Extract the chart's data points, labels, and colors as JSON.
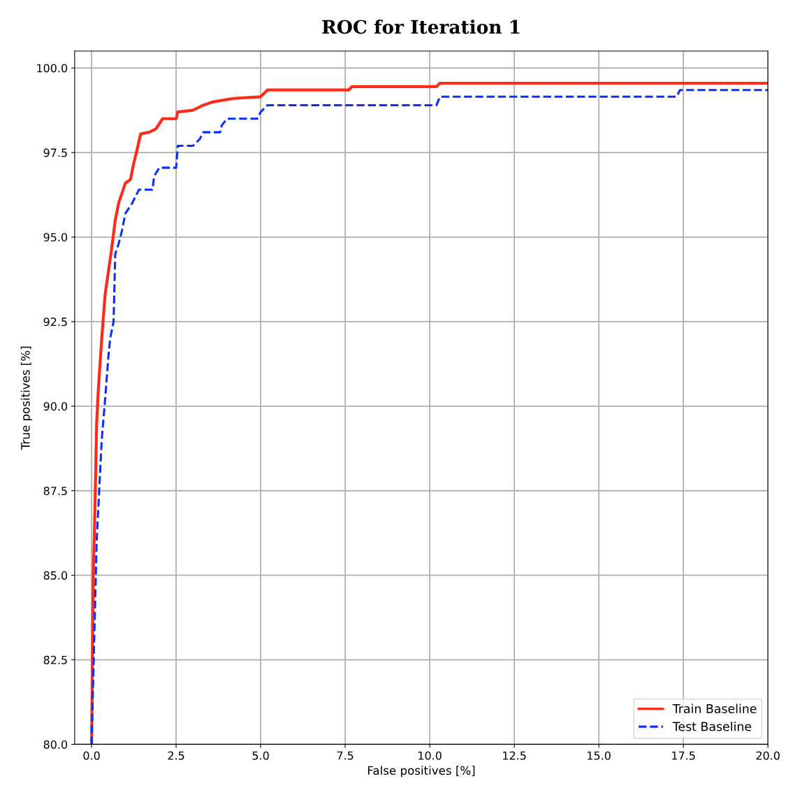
{
  "chart_data": {
    "type": "line",
    "title": "ROC for Iteration 1",
    "xlabel": "False positives [%]",
    "ylabel": "True positives [%]",
    "xlim": [
      -0.5,
      20
    ],
    "ylim": [
      80,
      100.5
    ],
    "xticks": [
      {
        "value": 0,
        "label": "0.0"
      },
      {
        "value": 2.5,
        "label": "2.5"
      },
      {
        "value": 5,
        "label": "5.0"
      },
      {
        "value": 7.5,
        "label": "7.5"
      },
      {
        "value": 10,
        "label": "10.0"
      },
      {
        "value": 12.5,
        "label": "12.5"
      },
      {
        "value": 15,
        "label": "15.0"
      },
      {
        "value": 17.5,
        "label": "17.5"
      },
      {
        "value": 20,
        "label": "20.0"
      }
    ],
    "yticks": [
      {
        "value": 80,
        "label": "80.0"
      },
      {
        "value": 82.5,
        "label": "82.5"
      },
      {
        "value": 85,
        "label": "85.0"
      },
      {
        "value": 87.5,
        "label": "87.5"
      },
      {
        "value": 90,
        "label": "90.0"
      },
      {
        "value": 92.5,
        "label": "92.5"
      },
      {
        "value": 95,
        "label": "95.0"
      },
      {
        "value": 97.5,
        "label": "97.5"
      },
      {
        "value": 100,
        "label": "100.0"
      }
    ],
    "grid": true,
    "legend": "bottom right",
    "marker": "none",
    "series": [
      {
        "name": "Train Baseline",
        "color": "#ff2a1a",
        "line_style": "solid",
        "x": [
          0,
          0.05,
          0.1,
          0.15,
          0.2,
          0.3,
          0.4,
          0.5,
          0.6,
          0.7,
          0.8,
          0.9,
          1.0,
          1.15,
          1.25,
          1.35,
          1.45,
          1.7,
          1.9,
          2.1,
          2.5,
          2.55,
          3.0,
          3.3,
          3.6,
          4.2,
          5.0,
          5.1,
          5.2,
          7.6,
          7.7,
          10.2,
          10.3,
          20
        ],
        "values": [
          80,
          85,
          87,
          89.5,
          90.5,
          92,
          93.3,
          94,
          94.7,
          95.5,
          96,
          96.3,
          96.6,
          96.7,
          97.2,
          97.6,
          98.05,
          98.1,
          98.2,
          98.5,
          98.5,
          98.7,
          98.75,
          98.9,
          99.0,
          99.1,
          99.15,
          99.25,
          99.35,
          99.35,
          99.45,
          99.45,
          99.55,
          99.55
        ]
      },
      {
        "name": "Test Baseline",
        "color": "#0a2eff",
        "line_style": "dashed",
        "x": [
          0,
          0.1,
          0.15,
          0.25,
          0.3,
          0.4,
          0.5,
          0.55,
          0.65,
          0.7,
          0.8,
          0.9,
          1.0,
          1.2,
          1.4,
          1.8,
          1.85,
          2.0,
          2.5,
          2.55,
          3.0,
          3.2,
          3.3,
          3.8,
          3.85,
          4.0,
          4.9,
          5.0,
          5.2,
          10.2,
          10.3,
          17.3,
          17.4,
          20
        ],
        "values": [
          80,
          84,
          86,
          88,
          89,
          90.2,
          91.5,
          92,
          92.5,
          94.5,
          94.8,
          95.2,
          95.7,
          96,
          96.4,
          96.4,
          96.8,
          97.05,
          97.05,
          97.7,
          97.7,
          97.9,
          98.1,
          98.1,
          98.3,
          98.5,
          98.5,
          98.7,
          98.9,
          98.9,
          99.15,
          99.15,
          99.35,
          99.35
        ]
      }
    ]
  }
}
